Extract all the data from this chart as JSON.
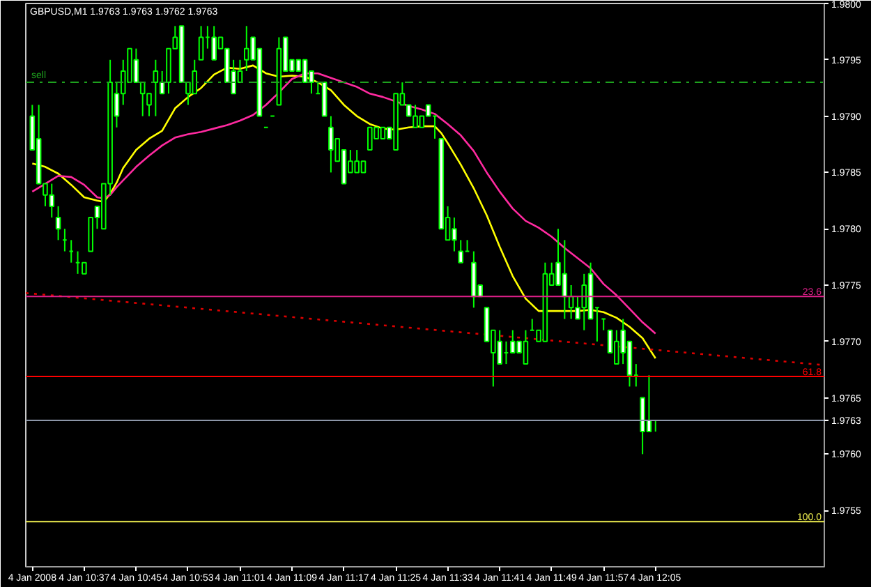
{
  "chart_data": {
    "type": "candlestick",
    "title": "GBPUSD,M1 1.9763 1.9763 1.9762 1.9763",
    "x": [
      "2008-01-04T10:29",
      "2008-01-04T10:30",
      "2008-01-04T10:31",
      "2008-01-04T10:32",
      "2008-01-04T10:33",
      "2008-01-04T10:34",
      "2008-01-04T10:35",
      "2008-01-04T10:36",
      "2008-01-04T10:37",
      "2008-01-04T10:38",
      "2008-01-04T10:39",
      "2008-01-04T10:40",
      "2008-01-04T10:41",
      "2008-01-04T10:42",
      "2008-01-04T10:43",
      "2008-01-04T10:44",
      "2008-01-04T10:45",
      "2008-01-04T10:46",
      "2008-01-04T10:47",
      "2008-01-04T10:48",
      "2008-01-04T10:49",
      "2008-01-04T10:50",
      "2008-01-04T10:51",
      "2008-01-04T10:52",
      "2008-01-04T10:53",
      "2008-01-04T10:54",
      "2008-01-04T10:55",
      "2008-01-04T10:56",
      "2008-01-04T10:57",
      "2008-01-04T10:58",
      "2008-01-04T10:59",
      "2008-01-04T11:00",
      "2008-01-04T11:01",
      "2008-01-04T11:02",
      "2008-01-04T11:03",
      "2008-01-04T11:04",
      "2008-01-04T11:05",
      "2008-01-04T11:06",
      "2008-01-04T11:07",
      "2008-01-04T11:08",
      "2008-01-04T11:09",
      "2008-01-04T11:10",
      "2008-01-04T11:11",
      "2008-01-04T11:12",
      "2008-01-04T11:13",
      "2008-01-04T11:14",
      "2008-01-04T11:15",
      "2008-01-04T11:16",
      "2008-01-04T11:17",
      "2008-01-04T11:18",
      "2008-01-04T11:19",
      "2008-01-04T11:20",
      "2008-01-04T11:21",
      "2008-01-04T11:22",
      "2008-01-04T11:23",
      "2008-01-04T11:24",
      "2008-01-04T11:25",
      "2008-01-04T11:26",
      "2008-01-04T11:27",
      "2008-01-04T11:28",
      "2008-01-04T11:29",
      "2008-01-04T11:30",
      "2008-01-04T11:31",
      "2008-01-04T11:32",
      "2008-01-04T11:33",
      "2008-01-04T11:34",
      "2008-01-04T11:35",
      "2008-01-04T11:36",
      "2008-01-04T11:37",
      "2008-01-04T11:38",
      "2008-01-04T11:39",
      "2008-01-04T11:40",
      "2008-01-04T11:41",
      "2008-01-04T11:42",
      "2008-01-04T11:43",
      "2008-01-04T11:44",
      "2008-01-04T11:45",
      "2008-01-04T11:46",
      "2008-01-04T11:47",
      "2008-01-04T11:48",
      "2008-01-04T11:49",
      "2008-01-04T11:50",
      "2008-01-04T11:51",
      "2008-01-04T11:52",
      "2008-01-04T11:53",
      "2008-01-04T11:54",
      "2008-01-04T11:55",
      "2008-01-04T11:56",
      "2008-01-04T11:57",
      "2008-01-04T11:58",
      "2008-01-04T11:59",
      "2008-01-04T12:00",
      "2008-01-04T12:01",
      "2008-01-04T12:02",
      "2008-01-04T12:03",
      "2008-01-04T12:04",
      "2008-01-04T12:05"
    ],
    "ohlc": [
      [
        1.979,
        1.9791,
        1.9787,
        1.9787
      ],
      [
        1.9788,
        1.9791,
        1.9784,
        1.9784
      ],
      [
        1.9783,
        1.9784,
        1.9782,
        1.9784
      ],
      [
        1.9783,
        1.9784,
        1.9781,
        1.9782
      ],
      [
        1.9781,
        1.9782,
        1.9779,
        1.978
      ],
      [
        1.9779,
        1.978,
        1.9778,
        1.9779
      ],
      [
        1.9778,
        1.9779,
        1.9777,
        1.9778
      ],
      [
        1.9777,
        1.9778,
        1.9776,
        1.9777
      ],
      [
        1.9776,
        1.9777,
        1.9776,
        1.9777
      ],
      [
        1.9778,
        1.9781,
        1.9778,
        1.9781
      ],
      [
        1.9782,
        1.9782,
        1.978,
        1.9781
      ],
      [
        1.978,
        1.9784,
        1.978,
        1.9784
      ],
      [
        1.9784,
        1.9795,
        1.9783,
        1.9793
      ],
      [
        1.9792,
        1.9793,
        1.9789,
        1.979
      ],
      [
        1.9792,
        1.9795,
        1.9791,
        1.9794
      ],
      [
        1.9793,
        1.9796,
        1.9793,
        1.9796
      ],
      [
        1.9795,
        1.9796,
        1.9793,
        1.9793
      ],
      [
        1.9792,
        1.9793,
        1.979,
        1.9793
      ],
      [
        1.9791,
        1.9792,
        1.979,
        1.9792
      ],
      [
        1.9793,
        1.9795,
        1.979,
        1.9794
      ],
      [
        1.9793,
        1.9794,
        1.9792,
        1.9792
      ],
      [
        1.9793,
        1.9796,
        1.9792,
        1.9796
      ],
      [
        1.9796,
        1.9798,
        1.9796,
        1.9797
      ],
      [
        1.9798,
        1.9798,
        1.9793,
        1.9793
      ],
      [
        1.9792,
        1.9793,
        1.9791,
        1.9793
      ],
      [
        1.9792,
        1.9795,
        1.9792,
        1.9794
      ],
      [
        1.9795,
        1.9798,
        1.9795,
        1.9797
      ],
      [
        1.9797,
        1.9798,
        1.9796,
        1.9797
      ],
      [
        1.9797,
        1.9798,
        1.9795,
        1.9795
      ],
      [
        1.9796,
        1.9797,
        1.9796,
        1.9797
      ],
      [
        1.9796,
        1.9796,
        1.9793,
        1.9793
      ],
      [
        1.9794,
        1.9795,
        1.9792,
        1.9792
      ],
      [
        1.9793,
        1.9795,
        1.9793,
        1.9794
      ],
      [
        1.9795,
        1.9798,
        1.9794,
        1.9796
      ],
      [
        1.9797,
        1.9797,
        1.9795,
        1.9795
      ],
      [
        1.9796,
        1.9796,
        1.979,
        1.979
      ],
      [
        1.9789,
        1.9789,
        1.9789,
        1.9789
      ],
      [
        1.979,
        1.979,
        1.979,
        1.979
      ],
      [
        1.9791,
        1.9797,
        1.9791,
        1.9796
      ],
      [
        1.9797,
        1.9797,
        1.9794,
        1.9794
      ],
      [
        1.9795,
        1.9795,
        1.9794,
        1.9794
      ],
      [
        1.9795,
        1.9795,
        1.9794,
        1.9794
      ],
      [
        1.9795,
        1.9795,
        1.9793,
        1.9793
      ],
      [
        1.9794,
        1.9794,
        1.9792,
        1.9793
      ],
      [
        1.9792,
        1.9793,
        1.9792,
        1.9792
      ],
      [
        1.9793,
        1.9793,
        1.979,
        1.979
      ],
      [
        1.9789,
        1.979,
        1.9785,
        1.9787
      ],
      [
        1.9786,
        1.9788,
        1.9786,
        1.9788
      ],
      [
        1.9787,
        1.9787,
        1.9784,
        1.9784
      ],
      [
        1.9785,
        1.9787,
        1.9785,
        1.9786
      ],
      [
        1.9785,
        1.9787,
        1.9785,
        1.9786
      ],
      [
        1.9785,
        1.9786,
        1.9785,
        1.9786
      ],
      [
        1.9787,
        1.9789,
        1.9787,
        1.9789
      ],
      [
        1.9788,
        1.9789,
        1.9788,
        1.9789
      ],
      [
        1.9788,
        1.9789,
        1.9788,
        1.9789
      ],
      [
        1.9789,
        1.9789,
        1.9788,
        1.9788
      ],
      [
        1.9787,
        1.9792,
        1.9787,
        1.9792
      ],
      [
        1.9791,
        1.9793,
        1.9791,
        1.9792
      ],
      [
        1.9791,
        1.9791,
        1.979,
        1.979
      ],
      [
        1.9789,
        1.9791,
        1.9789,
        1.979
      ],
      [
        1.9789,
        1.979,
        1.9789,
        1.979
      ],
      [
        1.9791,
        1.9791,
        1.979,
        1.979
      ],
      [
        1.979,
        1.979,
        1.9788,
        1.979
      ],
      [
        1.9788,
        1.9788,
        1.978,
        1.978
      ],
      [
        1.9779,
        1.9782,
        1.9779,
        1.9781
      ],
      [
        1.978,
        1.9781,
        1.9778,
        1.9779
      ],
      [
        1.9778,
        1.9779,
        1.9777,
        1.9777
      ],
      [
        1.9778,
        1.9779,
        1.9778,
        1.9778
      ],
      [
        1.9777,
        1.9778,
        1.9773,
        1.9774
      ],
      [
        1.9775,
        1.9775,
        1.9774,
        1.9774
      ],
      [
        1.9773,
        1.9773,
        1.977,
        1.977
      ],
      [
        1.9769,
        1.9771,
        1.9766,
        1.9771
      ],
      [
        1.977,
        1.9771,
        1.9768,
        1.9768
      ],
      [
        1.9769,
        1.977,
        1.9768,
        1.9769
      ],
      [
        1.977,
        1.9771,
        1.9769,
        1.9769
      ],
      [
        1.977,
        1.977,
        1.9769,
        1.9769
      ],
      [
        1.9768,
        1.9771,
        1.9768,
        1.977
      ],
      [
        1.9771,
        1.9772,
        1.9771,
        1.9771
      ],
      [
        1.977,
        1.9771,
        1.977,
        1.9771
      ],
      [
        1.977,
        1.9777,
        1.977,
        1.9776
      ],
      [
        1.9775,
        1.9777,
        1.9775,
        1.9776
      ],
      [
        1.9777,
        1.978,
        1.9775,
        1.9775
      ],
      [
        1.9776,
        1.9779,
        1.9772,
        1.9774
      ],
      [
        1.9773,
        1.9775,
        1.9772,
        1.9774
      ],
      [
        1.9773,
        1.9774,
        1.9772,
        1.9772
      ],
      [
        1.9773,
        1.9776,
        1.9771,
        1.9775
      ],
      [
        1.9776,
        1.9777,
        1.9772,
        1.9772
      ],
      [
        1.9773,
        1.9773,
        1.977,
        1.9773
      ],
      [
        1.9772,
        1.9772,
        1.9771,
        1.9772
      ],
      [
        1.9771,
        1.9771,
        1.9769,
        1.9769
      ],
      [
        1.9768,
        1.9771,
        1.9768,
        1.977
      ],
      [
        1.9771,
        1.9772,
        1.9768,
        1.9769
      ],
      [
        1.977,
        1.977,
        1.9766,
        1.9767
      ],
      [
        1.9767,
        1.9768,
        1.9766,
        1.9767
      ],
      [
        1.9765,
        1.9765,
        1.976,
        1.9762
      ],
      [
        1.9763,
        1.9767,
        1.9762,
        1.9762
      ],
      [
        1.9763,
        1.9763,
        1.9762,
        1.9763
      ]
    ],
    "colors": [
      "#ffffff",
      "#ffffff",
      "#000000",
      "#ffffff",
      "#ffffff",
      "#00ff00",
      "#00ff00",
      "#00ff00",
      "#000000",
      "#000000",
      "#ffffff",
      "#000000",
      "#000000",
      "#ffffff",
      "#000000",
      "#000000",
      "#ffffff",
      "#000000",
      "#000000",
      "#000000",
      "#ffffff",
      "#000000",
      "#000000",
      "#ffffff",
      "#000000",
      "#000000",
      "#000000",
      "#00ff00",
      "#ffffff",
      "#000000",
      "#ffffff",
      "#ffffff",
      "#000000",
      "#000000",
      "#ffffff",
      "#ffffff",
      "#00ff00",
      "#00ff00",
      "#000000",
      "#ffffff",
      "#ffffff",
      "#ffffff",
      "#ffffff",
      "#ffffff",
      "#00ff00",
      "#ffffff",
      "#ffffff",
      "#000000",
      "#ffffff",
      "#000000",
      "#000000",
      "#000000",
      "#000000",
      "#000000",
      "#000000",
      "#ffffff",
      "#000000",
      "#000000",
      "#ffffff",
      "#000000",
      "#000000",
      "#ffffff",
      "#00ff00",
      "#ffffff",
      "#000000",
      "#ffffff",
      "#ffffff",
      "#00ff00",
      "#ffffff",
      "#ffffff",
      "#ffffff",
      "#000000",
      "#ffffff",
      "#00ff00",
      "#ffffff",
      "#ffffff",
      "#000000",
      "#00ff00",
      "#000000",
      "#000000",
      "#000000",
      "#ffffff",
      "#ffffff",
      "#000000",
      "#ffffff",
      "#000000",
      "#ffffff",
      "#00ff00",
      "#00ff00",
      "#ffffff",
      "#000000",
      "#ffffff",
      "#ffffff",
      "#00ff00",
      "#ffffff",
      "#ffffff",
      "#00ff00"
    ],
    "color": "#00ff00",
    "series": [
      {
        "type": "line",
        "color": "#ffff00",
        "x": [
          "2008-01-04T10:29",
          "2008-01-04T10:31",
          "2008-01-04T10:33",
          "2008-01-04T10:35",
          "2008-01-04T10:37",
          "2008-01-04T10:39",
          "2008-01-04T10:40",
          "2008-01-04T10:41",
          "2008-01-04T10:42",
          "2008-01-04T10:43",
          "2008-01-04T10:45",
          "2008-01-04T10:47",
          "2008-01-04T10:49",
          "2008-01-04T10:51",
          "2008-01-04T10:53",
          "2008-01-04T10:55",
          "2008-01-04T10:57",
          "2008-01-04T10:59",
          "2008-01-04T11:01",
          "2008-01-04T11:03",
          "2008-01-04T11:05",
          "2008-01-04T11:07",
          "2008-01-04T11:09",
          "2008-01-04T11:11",
          "2008-01-04T11:13",
          "2008-01-04T11:15",
          "2008-01-04T11:17",
          "2008-01-04T11:19",
          "2008-01-04T11:21",
          "2008-01-04T11:23",
          "2008-01-04T11:25",
          "2008-01-04T11:27",
          "2008-01-04T11:29",
          "2008-01-04T11:31",
          "2008-01-04T11:32",
          "2008-01-04T11:33",
          "2008-01-04T11:35",
          "2008-01-04T11:37",
          "2008-01-04T11:39",
          "2008-01-04T11:41",
          "2008-01-04T11:43",
          "2008-01-04T11:45",
          "2008-01-04T11:47",
          "2008-01-04T11:49",
          "2008-01-04T11:51",
          "2008-01-04T11:53",
          "2008-01-04T11:55",
          "2008-01-04T11:57",
          "2008-01-04T11:59",
          "2008-01-04T12:01",
          "2008-01-04T12:03",
          "2008-01-04T12:05"
        ],
        "values": [
          1.97858,
          1.97855,
          1.97849,
          1.97839,
          1.97828,
          1.97825,
          1.97824,
          1.97831,
          1.97841,
          1.97854,
          1.9787,
          1.9788,
          1.97887,
          1.97907,
          1.97917,
          1.97925,
          1.97937,
          1.97943,
          1.97942,
          1.97945,
          1.97938,
          1.97935,
          1.97936,
          1.97935,
          1.9793,
          1.97923,
          1.9791,
          1.979,
          1.97893,
          1.97889,
          1.97888,
          1.9789,
          1.97891,
          1.97891,
          1.97885,
          1.97876,
          1.97857,
          1.97836,
          1.97812,
          1.97784,
          1.97758,
          1.97738,
          1.97727,
          1.97727,
          1.97727,
          1.97727,
          1.97728,
          1.97726,
          1.97721,
          1.97713,
          1.97703,
          1.97685
        ]
      },
      {
        "type": "line",
        "color": "#ff2aa0",
        "x": [
          "2008-01-04T10:29",
          "2008-01-04T10:31",
          "2008-01-04T10:33",
          "2008-01-04T10:35",
          "2008-01-04T10:37",
          "2008-01-04T10:39",
          "2008-01-04T10:40",
          "2008-01-04T10:41",
          "2008-01-04T10:42",
          "2008-01-04T10:43",
          "2008-01-04T10:45",
          "2008-01-04T10:47",
          "2008-01-04T10:49",
          "2008-01-04T10:51",
          "2008-01-04T10:53",
          "2008-01-04T10:55",
          "2008-01-04T10:57",
          "2008-01-04T10:59",
          "2008-01-04T11:01",
          "2008-01-04T11:03",
          "2008-01-04T11:05",
          "2008-01-04T11:07",
          "2008-01-04T11:09",
          "2008-01-04T11:11",
          "2008-01-04T11:13",
          "2008-01-04T11:15",
          "2008-01-04T11:17",
          "2008-01-04T11:19",
          "2008-01-04T11:21",
          "2008-01-04T11:23",
          "2008-01-04T11:25",
          "2008-01-04T11:27",
          "2008-01-04T11:29",
          "2008-01-04T11:31",
          "2008-01-04T11:33",
          "2008-01-04T11:35",
          "2008-01-04T11:37",
          "2008-01-04T11:39",
          "2008-01-04T11:41",
          "2008-01-04T11:43",
          "2008-01-04T11:45",
          "2008-01-04T11:47",
          "2008-01-04T11:49",
          "2008-01-04T11:51",
          "2008-01-04T11:53",
          "2008-01-04T11:55",
          "2008-01-04T11:57",
          "2008-01-04T11:59",
          "2008-01-04T12:01",
          "2008-01-04T12:03",
          "2008-01-04T12:05"
        ],
        "values": [
          1.97833,
          1.9784,
          1.97847,
          1.97846,
          1.97839,
          1.97828,
          1.97827,
          1.9783,
          1.97837,
          1.97843,
          1.97855,
          1.97865,
          1.97874,
          1.97881,
          1.97884,
          1.97886,
          1.97889,
          1.97892,
          1.97896,
          1.97901,
          1.9791,
          1.97921,
          1.97933,
          1.97938,
          1.97938,
          1.97934,
          1.9793,
          1.97926,
          1.9792,
          1.97917,
          1.97913,
          1.97909,
          1.97906,
          1.97902,
          1.97893,
          1.97883,
          1.97869,
          1.9785,
          1.97833,
          1.97818,
          1.97807,
          1.97801,
          1.97793,
          1.97783,
          1.97774,
          1.97765,
          1.97751,
          1.97741,
          1.97729,
          1.97717,
          1.97707
        ]
      },
      {
        "type": "line",
        "color": "#dd0000",
        "line_style": "dotted",
        "x": [
          "2008-01-04T10:28",
          "2008-01-04T12:31"
        ],
        "values": [
          1.97743,
          1.97679
        ]
      }
    ],
    "ref_lines": [
      {
        "axis": "y",
        "value": 1.9793,
        "label": "sell",
        "color": "#1ea01e",
        "line_style": "dashdot"
      },
      {
        "axis": "y",
        "value": 1.9774,
        "color": "#e0208a"
      },
      {
        "axis": "y",
        "value": 1.97669,
        "color": "#ff0000"
      },
      {
        "axis": "y",
        "value": 1.9763,
        "color": "#8c96a8"
      },
      {
        "axis": "y",
        "value": 1.9754,
        "color": "#f0f050"
      }
    ],
    "annotations": [
      {
        "text": "23.6",
        "x": "2008-01-04T12:31",
        "y": 1.9774
      },
      {
        "text": "61.8",
        "x": "2008-01-04T12:31",
        "y": 1.97669
      },
      {
        "text": "100.0",
        "x": "2008-01-04T12:31",
        "y": 1.9754
      }
    ],
    "xlim": [
      "2008-01-04T10:28",
      "2008-01-04T12:31"
    ],
    "xticks": [
      {
        "value": "2008-01-04T10:29",
        "label": "4 Jan 2008"
      },
      {
        "value": "2008-01-04T10:37",
        "label": "4 Jan 10:37"
      },
      {
        "value": "2008-01-04T10:45",
        "label": "4 Jan 10:45"
      },
      {
        "value": "2008-01-04T10:53",
        "label": "4 Jan 10:53"
      },
      {
        "value": "2008-01-04T11:01",
        "label": "4 Jan 11:01"
      },
      {
        "value": "2008-01-04T11:09",
        "label": "4 Jan 11:09"
      },
      {
        "value": "2008-01-04T11:17",
        "label": "4 Jan 11:17"
      },
      {
        "value": "2008-01-04T11:25",
        "label": "4 Jan 11:25"
      },
      {
        "value": "2008-01-04T11:33",
        "label": "4 Jan 11:33"
      },
      {
        "value": "2008-01-04T11:41",
        "label": "4 Jan 11:41"
      },
      {
        "value": "2008-01-04T11:49",
        "label": "4 Jan 11:49"
      },
      {
        "value": "2008-01-04T11:57",
        "label": "4 Jan 11:57"
      },
      {
        "value": "2008-01-04T12:05",
        "label": "4 Jan 12:05"
      }
    ],
    "ylim": [
      1.975,
      1.98
    ],
    "yticks": [
      1.9755,
      {
        "value": 1.976,
        "label": "1.9760"
      },
      {
        "value": 1.9763,
        "label": "1.9763"
      },
      1.9765,
      {
        "value": 1.977,
        "label": "1.9770"
      },
      1.9775,
      {
        "value": 1.978,
        "label": "1.9780"
      },
      1.9785,
      {
        "value": 1.979,
        "label": "1.9790"
      },
      1.9795,
      {
        "value": 1.98,
        "label": "1.9800"
      }
    ]
  }
}
